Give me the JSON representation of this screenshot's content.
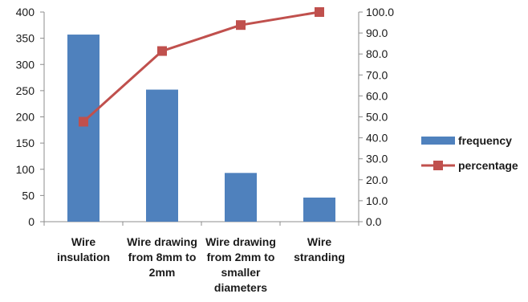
{
  "chart_data": {
    "type": "bar",
    "categories": [
      [
        "Wire",
        "insulation"
      ],
      [
        "Wire drawing",
        "from 8mm to",
        "2mm"
      ],
      [
        "Wire drawing",
        "from 2mm to",
        "smaller",
        "diameters"
      ],
      [
        "Wire",
        "stranding"
      ]
    ],
    "series": [
      {
        "name": "frequency",
        "type": "bar",
        "axis": "left",
        "color": "#4f81bd",
        "values": [
          357,
          252,
          93,
          46
        ]
      },
      {
        "name": "percentage",
        "type": "line",
        "axis": "right",
        "color": "#c0504d",
        "marker": "square",
        "values": [
          47.7,
          81.4,
          93.8,
          100.0
        ]
      }
    ],
    "y_left": {
      "min": 0,
      "max": 400,
      "step": 50,
      "ticks": [
        "0",
        "50",
        "100",
        "150",
        "200",
        "250",
        "300",
        "350",
        "400"
      ]
    },
    "y_right": {
      "min": 0,
      "max": 100,
      "step": 10,
      "ticks": [
        "0.0",
        "10.0",
        "20.0",
        "30.0",
        "40.0",
        "50.0",
        "60.0",
        "70.0",
        "80.0",
        "90.0",
        "100.0"
      ]
    },
    "grid": false,
    "legend": {
      "placement": "right",
      "entries": [
        "frequency",
        "percentage"
      ]
    },
    "title": "",
    "xlabel": "",
    "ylabel": ""
  }
}
